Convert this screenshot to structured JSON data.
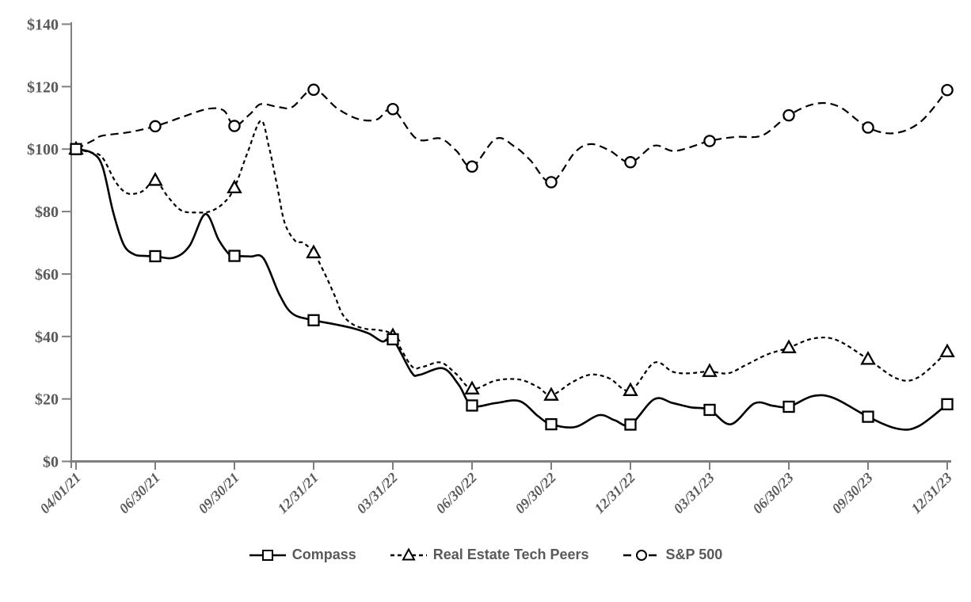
{
  "chart_data": {
    "type": "line",
    "title": "",
    "xlabel": "",
    "ylabel": "",
    "ylim": [
      0,
      140
    ],
    "y_ticks": [
      0,
      20,
      40,
      60,
      80,
      100,
      120,
      140
    ],
    "y_tick_labels": [
      "$0",
      "$20",
      "$40",
      "$60",
      "$80",
      "$100",
      "$120",
      "$140"
    ],
    "categories": [
      "04/01/21",
      "06/30/21",
      "09/30/21",
      "12/31/21",
      "03/31/22",
      "06/30/22",
      "09/30/22",
      "12/31/22",
      "03/31/23",
      "06/30/23",
      "09/30/23",
      "12/31/23"
    ],
    "grid": false,
    "legend_position": "bottom",
    "axis_color": "#7f7f7f",
    "label_color": "#595959",
    "line_color": "#000000",
    "series": [
      {
        "name": "S&P 500",
        "line_style": "long-dash",
        "marker": "circle",
        "values": [
          100,
          107.3,
          107.4,
          119.0,
          112.8,
          94.4,
          89.4,
          95.8,
          102.6,
          110.8,
          106.9,
          118.9
        ],
        "detail_points": [
          [
            0,
            100
          ],
          [
            0.7,
            103
          ],
          [
            1,
            104.3
          ],
          [
            2,
            105.4
          ],
          [
            3,
            107.3
          ],
          [
            4,
            110.2
          ],
          [
            5,
            112.9
          ],
          [
            5.6,
            112.3
          ],
          [
            6,
            107.4
          ],
          [
            6.6,
            111.3
          ],
          [
            7,
            114.4
          ],
          [
            7.7,
            113.4
          ],
          [
            8.2,
            113.5
          ],
          [
            9,
            119.1
          ],
          [
            9.9,
            113
          ],
          [
            10.7,
            109.6
          ],
          [
            11.4,
            109.5
          ],
          [
            12,
            112.8
          ],
          [
            12.9,
            103.3
          ],
          [
            13.8,
            103.4
          ],
          [
            14.4,
            99.5
          ],
          [
            15,
            94.4
          ],
          [
            15.9,
            103.3
          ],
          [
            16.6,
            100.9
          ],
          [
            17.2,
            96.5
          ],
          [
            18,
            89.4
          ],
          [
            18.9,
            99
          ],
          [
            19.5,
            101.6
          ],
          [
            20.2,
            99.6
          ],
          [
            21,
            95.8
          ],
          [
            21.9,
            101.1
          ],
          [
            22.7,
            99.4
          ],
          [
            24,
            102.6
          ],
          [
            25,
            103.9
          ],
          [
            26,
            104.4
          ],
          [
            27,
            110.8
          ],
          [
            28,
            114.5
          ],
          [
            28.9,
            113.6
          ],
          [
            30,
            106.9
          ],
          [
            31,
            105.1
          ],
          [
            32,
            108.8
          ],
          [
            33,
            118.9
          ]
        ]
      },
      {
        "name": "Real Estate Tech Peers",
        "line_style": "dashed",
        "marker": "triangle",
        "values": [
          100,
          90.0,
          87.6,
          66.8,
          40.2,
          23.2,
          21.2,
          22.7,
          28.8,
          36.4,
          32.7,
          35.1
        ],
        "detail_points": [
          [
            0,
            100
          ],
          [
            0.6,
            98.8
          ],
          [
            1,
            97.3
          ],
          [
            1.5,
            89.5
          ],
          [
            1.9,
            86
          ],
          [
            2.3,
            85.8
          ],
          [
            2.6,
            87
          ],
          [
            3,
            90
          ],
          [
            3.5,
            84.5
          ],
          [
            4,
            80.3
          ],
          [
            4.6,
            79.7
          ],
          [
            5.1,
            80.1
          ],
          [
            5.6,
            82.8
          ],
          [
            6,
            87.6
          ],
          [
            6.5,
            99
          ],
          [
            7,
            109.1
          ],
          [
            7.3,
            101
          ],
          [
            7.6,
            89
          ],
          [
            7.9,
            76.5
          ],
          [
            8.3,
            70.6
          ],
          [
            8.6,
            70
          ],
          [
            9,
            66.8
          ],
          [
            9.4,
            60.5
          ],
          [
            9.8,
            53
          ],
          [
            10.1,
            47
          ],
          [
            10.5,
            43.8
          ],
          [
            11,
            42.4
          ],
          [
            11.5,
            42
          ],
          [
            12,
            40.2
          ],
          [
            12.7,
            30.6
          ],
          [
            13.1,
            30.2
          ],
          [
            13.8,
            31.7
          ],
          [
            14.4,
            28
          ],
          [
            15,
            23.2
          ],
          [
            15.9,
            25.9
          ],
          [
            16.8,
            26.2
          ],
          [
            17.5,
            23.8
          ],
          [
            18,
            21.2
          ],
          [
            18.8,
            25.4
          ],
          [
            19.5,
            27.8
          ],
          [
            20.2,
            26.6
          ],
          [
            21,
            22.7
          ],
          [
            21.9,
            31.6
          ],
          [
            22.6,
            28.7
          ],
          [
            23.2,
            28.2
          ],
          [
            24,
            28.8
          ],
          [
            24.7,
            28.2
          ],
          [
            25.4,
            31
          ],
          [
            26.2,
            34.3
          ],
          [
            27,
            36.4
          ],
          [
            27.9,
            39.3
          ],
          [
            28.8,
            38.9
          ],
          [
            30,
            32.7
          ],
          [
            31.1,
            26.5
          ],
          [
            31.9,
            26.9
          ],
          [
            33,
            35.1
          ]
        ]
      },
      {
        "name": "Compass",
        "line_style": "solid",
        "marker": "square",
        "values": [
          100,
          65.7,
          65.8,
          45.2,
          39.1,
          17.9,
          11.9,
          11.8,
          16.5,
          17.5,
          14.3,
          18.3
        ],
        "detail_points": [
          [
            0,
            100
          ],
          [
            0.6,
            98.8
          ],
          [
            1,
            94.5
          ],
          [
            1.4,
            80
          ],
          [
            1.8,
            69.5
          ],
          [
            2.2,
            66.3
          ],
          [
            2.6,
            65.8
          ],
          [
            3,
            65.7
          ],
          [
            3.7,
            65.2
          ],
          [
            4.3,
            69
          ],
          [
            4.9,
            79.2
          ],
          [
            5.4,
            71
          ],
          [
            5.8,
            66.3
          ],
          [
            6,
            65.8
          ],
          [
            6.6,
            65.6
          ],
          [
            7.1,
            65
          ],
          [
            7.7,
            53.5
          ],
          [
            8.2,
            47.3
          ],
          [
            9,
            45.2
          ],
          [
            9.8,
            43.9
          ],
          [
            10.5,
            42.6
          ],
          [
            11.1,
            40.9
          ],
          [
            11.6,
            38.4
          ],
          [
            12,
            39.1
          ],
          [
            12.7,
            28.6
          ],
          [
            13,
            27.7
          ],
          [
            13.9,
            29.8
          ],
          [
            14.5,
            24.5
          ],
          [
            15,
            17.9
          ],
          [
            15.9,
            18.7
          ],
          [
            16.8,
            19.3
          ],
          [
            17.5,
            14.5
          ],
          [
            18,
            11.9
          ],
          [
            18.9,
            11
          ],
          [
            19.8,
            14.8
          ],
          [
            20.4,
            13.2
          ],
          [
            21,
            11.8
          ],
          [
            21.9,
            19.9
          ],
          [
            22.6,
            18.7
          ],
          [
            23.3,
            17.3
          ],
          [
            24,
            16.5
          ],
          [
            24.8,
            11.9
          ],
          [
            25.7,
            18.6
          ],
          [
            26.4,
            17.8
          ],
          [
            27,
            17.5
          ],
          [
            27.9,
            20.9
          ],
          [
            28.7,
            20.3
          ],
          [
            30,
            14.3
          ],
          [
            31.1,
            10.5
          ],
          [
            31.9,
            11.2
          ],
          [
            33,
            18.3
          ]
        ]
      }
    ]
  },
  "legend": {
    "items": [
      {
        "label": "Compass",
        "marker": "square",
        "line_style": "solid"
      },
      {
        "label": "Real Estate Tech Peers",
        "marker": "triangle",
        "line_style": "dashed"
      },
      {
        "label": "S&P 500",
        "marker": "circle",
        "line_style": "long-dash"
      }
    ]
  }
}
